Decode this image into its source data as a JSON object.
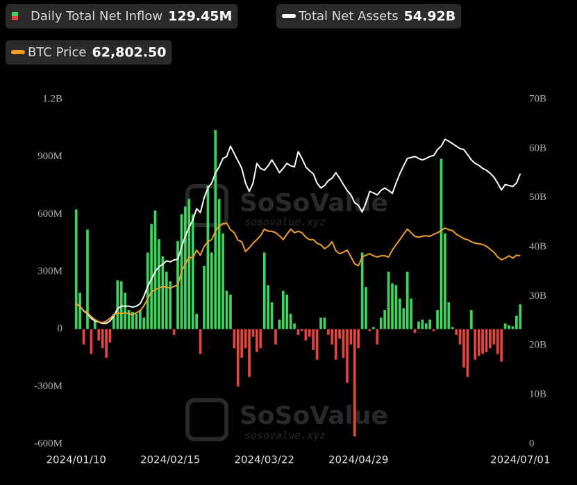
{
  "chart_data": {
    "type": "bar_line",
    "categories": [
      "2024/01/10",
      null,
      null,
      null,
      null,
      null,
      null,
      null,
      null,
      null,
      null,
      null,
      null,
      null,
      null,
      null,
      null,
      null,
      null,
      null,
      null,
      null,
      null,
      null,
      null,
      "2024/02/15",
      null,
      null,
      null,
      null,
      null,
      null,
      null,
      null,
      null,
      null,
      null,
      null,
      null,
      null,
      null,
      null,
      null,
      null,
      null,
      null,
      null,
      null,
      null,
      null,
      "2024/03/22",
      null,
      null,
      null,
      null,
      null,
      null,
      null,
      null,
      null,
      null,
      null,
      null,
      null,
      null,
      null,
      null,
      null,
      null,
      null,
      null,
      null,
      null,
      null,
      null,
      "2024/04/29",
      null,
      null,
      null,
      null,
      null,
      null,
      null,
      null,
      null,
      null,
      null,
      null,
      null,
      null,
      null,
      null,
      null,
      null,
      null,
      null,
      null,
      null,
      null,
      null,
      null,
      null,
      null,
      null,
      null,
      null,
      null,
      null,
      null,
      null,
      null,
      null,
      null,
      null,
      null,
      null,
      null,
      null,
      "2024/07/01"
    ],
    "series": [
      {
        "name": "Daily Total Net Inflow",
        "current_label": "129.45M",
        "axis": "y",
        "kind": "bar",
        "color": "#3fd45e",
        "negative_color": "#e2463c",
        "values": [
          625,
          190,
          -80,
          520,
          -130,
          40,
          -60,
          -100,
          -150,
          -70,
          80,
          255,
          250,
          190,
          100,
          90,
          80,
          100,
          60,
          400,
          550,
          620,
          470,
          380,
          300,
          250,
          -30,
          460,
          600,
          640,
          680,
          600,
          80,
          -130,
          330,
          750,
          400,
          1040,
          680,
          500,
          200,
          180,
          -100,
          -300,
          -150,
          -100,
          -250,
          -40,
          -120,
          -100,
          400,
          230,
          140,
          -80,
          50,
          200,
          180,
          80,
          30,
          -30,
          -10,
          -60,
          -40,
          -110,
          -160,
          60,
          60,
          -30,
          -80,
          -160,
          -50,
          -150,
          -280,
          -80,
          -560,
          -100,
          400,
          220,
          -10,
          10,
          -80,
          60,
          100,
          300,
          240,
          230,
          160,
          110,
          300,
          160,
          -20,
          40,
          50,
          30,
          50,
          -10,
          100,
          890,
          500,
          140,
          10,
          -30,
          -80,
          -200,
          -250,
          100,
          -160,
          -140,
          -130,
          -120,
          -100,
          -80,
          -130,
          -170,
          30,
          20,
          15,
          70,
          129.45
        ]
      },
      {
        "name": "Total Net Assets",
        "current_label": "54.92B",
        "axis": "y2",
        "kind": "line",
        "color": "#ffffff",
        "values": [
          28.5,
          28,
          27,
          26.5,
          25.5,
          25,
          24.8,
          24.5,
          24.5,
          25,
          26,
          27.5,
          28,
          28,
          28,
          27.8,
          28,
          28.5,
          30,
          32,
          33.5,
          35,
          36,
          36.5,
          37.2,
          37,
          37.4,
          37.5,
          40,
          42.2,
          44,
          45.5,
          47.8,
          47,
          50,
          52,
          53,
          55,
          56.3,
          58,
          58.4,
          60.5,
          59,
          57.5,
          56,
          53,
          51.3,
          53,
          57,
          56,
          55.6,
          56.5,
          57.7,
          56.5,
          55.1,
          56,
          57,
          56.5,
          56.3,
          59.4,
          58,
          56.3,
          55.5,
          54.9,
          53,
          52,
          52.5,
          53.5,
          54,
          55.1,
          54,
          52.7,
          51.5,
          50.6,
          49,
          48.5,
          47.1,
          49,
          51.3,
          51,
          50.6,
          51.5,
          52,
          51.5,
          50.9,
          53,
          54.9,
          56.5,
          58,
          58.2,
          58.4,
          58,
          57.7,
          58,
          58.4,
          58.6,
          59.8,
          60.5,
          61.9,
          61.5,
          61,
          60.5,
          60,
          59.8,
          58.8,
          57.7,
          57,
          56.6,
          56,
          55.6,
          55,
          54.2,
          53,
          51.6,
          52.7,
          52.5,
          52.3,
          53,
          54.92
        ]
      },
      {
        "name": "BTC Price",
        "current_label": "62,802.50",
        "axis": "y3",
        "kind": "line",
        "color": "#f0a02a",
        "values": [
          46800,
          46000,
          44500,
          43800,
          42500,
          41500,
          40800,
          40500,
          41000,
          42000,
          43000,
          43800,
          43500,
          43800,
          43500,
          43200,
          43800,
          44500,
          46100,
          48500,
          50800,
          51500,
          52000,
          52600,
          52300,
          52000,
          52600,
          53000,
          57700,
          60000,
          62400,
          62000,
          64700,
          63000,
          65900,
          67500,
          68200,
          71000,
          72800,
          73500,
          73700,
          71500,
          70500,
          68000,
          67500,
          64200,
          65500,
          67000,
          68200,
          69500,
          71700,
          71000,
          71000,
          70500,
          69500,
          68200,
          70000,
          71700,
          70500,
          71000,
          70500,
          69000,
          68200,
          68200,
          67000,
          66500,
          65200,
          66000,
          67500,
          64500,
          63500,
          64000,
          64700,
          62500,
          60100,
          59500,
          62400,
          63000,
          63500,
          62800,
          62400,
          62800,
          62800,
          62400,
          64700,
          66500,
          68200,
          70000,
          71700,
          70500,
          69300,
          69000,
          69300,
          69500,
          69300,
          70000,
          70500,
          71200,
          72100,
          71500,
          71200,
          70000,
          69300,
          68500,
          68200,
          67500,
          67000,
          66800,
          66600,
          66000,
          65000,
          64000,
          62400,
          61500,
          62000,
          62800,
          62000,
          63000,
          62802.5
        ]
      }
    ],
    "ylim": [
      -600,
      1200
    ],
    "yticks": [
      {
        "value": -600,
        "label": "-600M"
      },
      {
        "value": -300,
        "label": "-300M"
      },
      0,
      {
        "value": 300,
        "label": "300M"
      },
      {
        "value": 600,
        "label": "600M"
      },
      {
        "value": 900,
        "label": "900M"
      },
      {
        "value": 1200,
        "label": "1.2B"
      }
    ],
    "y2lim": [
      0,
      70
    ],
    "y2ticks": [
      0,
      {
        "value": 10,
        "label": "10B"
      },
      {
        "value": 20,
        "label": "20B"
      },
      {
        "value": 30,
        "label": "30B"
      },
      {
        "value": 40,
        "label": "40B"
      },
      {
        "value": 50,
        "label": "50B"
      },
      {
        "value": 60,
        "label": "60B"
      },
      {
        "value": 70,
        "label": "70B"
      }
    ],
    "y3lim": [
      0,
      115000
    ],
    "grid": false,
    "watermark": {
      "brand": "SoSoValue",
      "url": "sosovalue.xyz"
    }
  }
}
